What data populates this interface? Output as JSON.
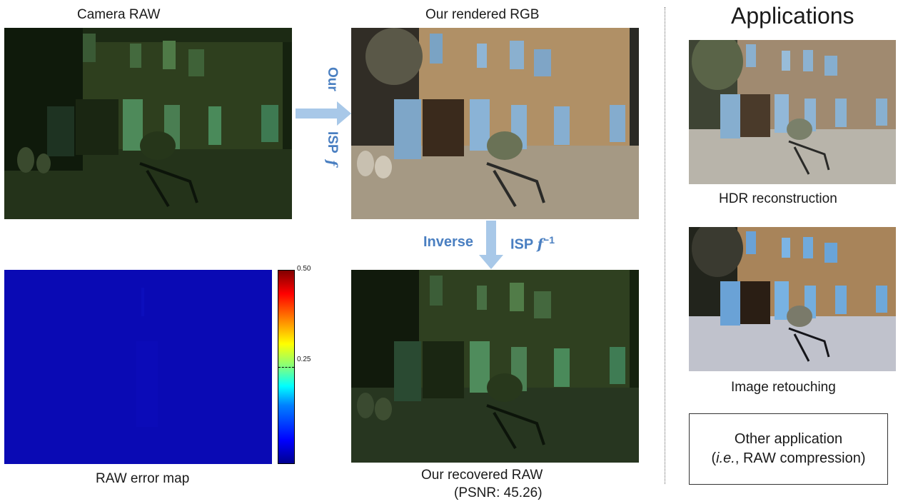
{
  "captions": {
    "camera_raw": "Camera RAW",
    "rendered_rgb": "Our rendered RGB",
    "applications": "Applications",
    "hdr": "HDR reconstruction",
    "retouch": "Image retouching",
    "error_map": "RAW error map",
    "recovered_line1": "Our recovered RAW",
    "recovered_line2": "(PSNR: 45.26)"
  },
  "arrows": {
    "forward_word1": "Our",
    "forward_word2": "ISP",
    "forward_symbol": "f",
    "inverse_word1": "Inverse",
    "inverse_word2": "ISP",
    "inverse_symbol": "f",
    "inverse_exponent": "−1"
  },
  "other_app": {
    "line1": "Other application",
    "ie": "i.e.",
    "line2_rest": ", RAW compression)"
  },
  "colorbar": {
    "max_label": "0.50",
    "mid_label": "0.25",
    "range": [
      0,
      0.5
    ]
  },
  "colors": {
    "accent": "#4a7fc1",
    "arrow": "#a8c8e8",
    "error_map": "#0a0ab4"
  }
}
